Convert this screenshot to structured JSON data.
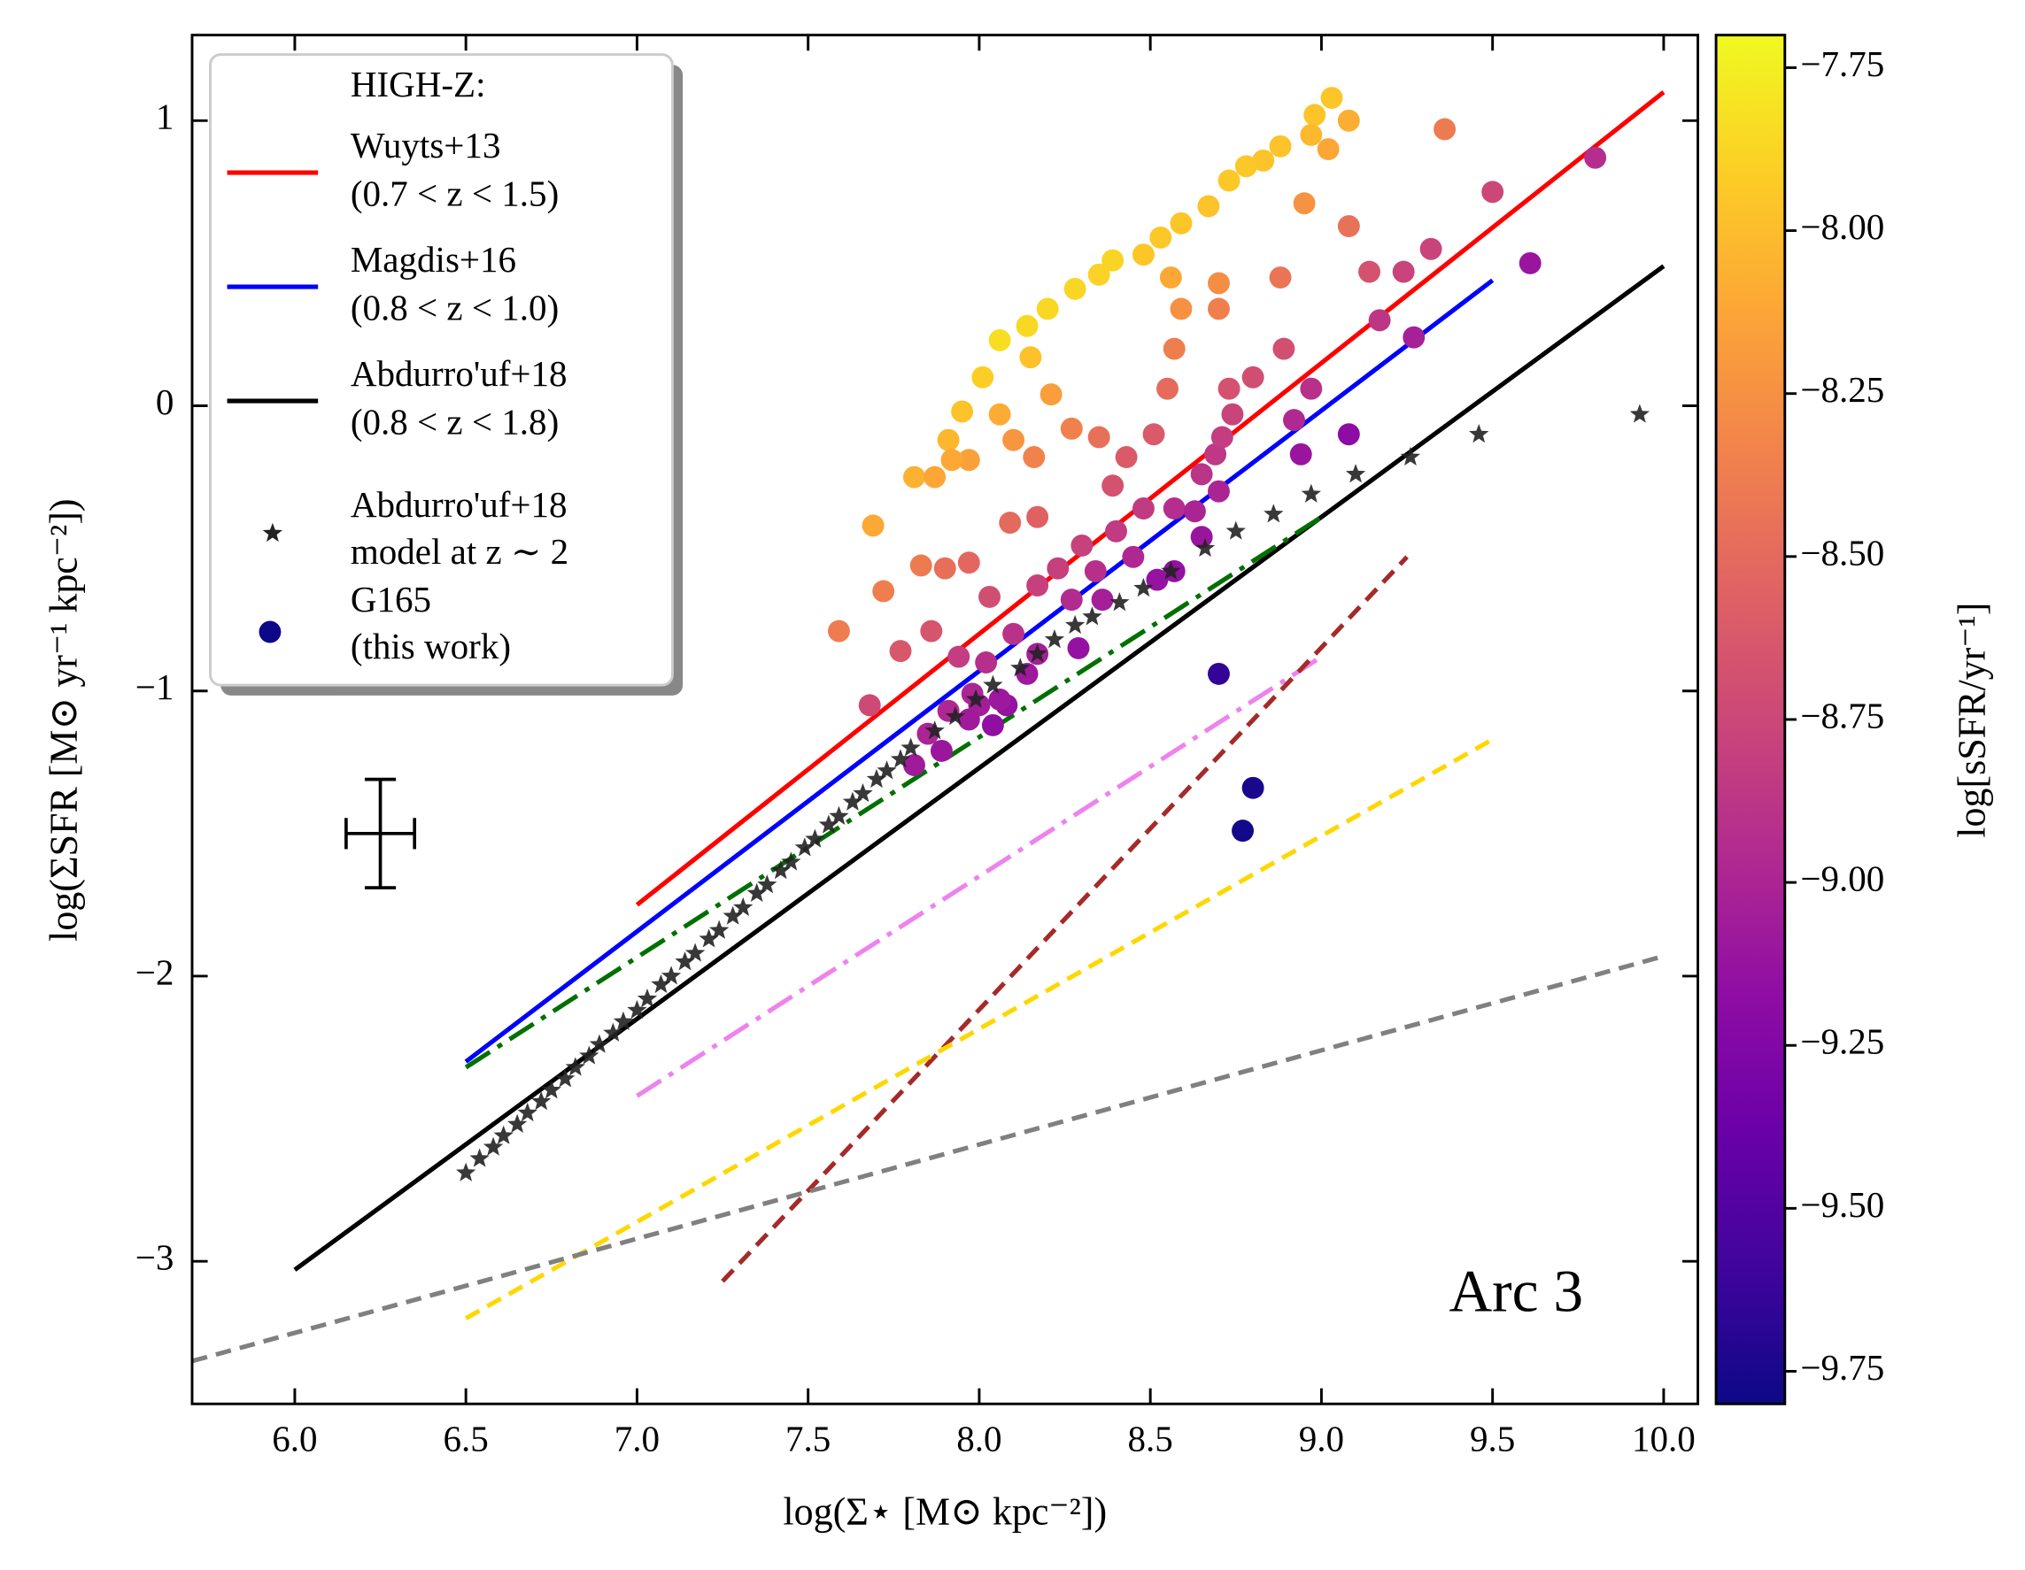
{
  "chart_data": {
    "type": "scatter",
    "xlabel": "log(Σ⋆ [M⊙ kpc⁻²])",
    "ylabel": "log(ΣSFR [M⊙ yr⁻¹ kpc⁻²])",
    "annotation": "Arc 3",
    "legend_title": "HIGH-Z:",
    "legend": "upper left",
    "xlim": [
      5.7,
      10.1
    ],
    "ylim": [
      -3.5,
      1.3
    ],
    "xticks": [
      {
        "value": 6,
        "label": "6.0"
      },
      {
        "value": 6.5,
        "label": "6.5"
      },
      {
        "value": 7,
        "label": "7.0"
      },
      {
        "value": 7.5,
        "label": "7.5"
      },
      {
        "value": 8,
        "label": "8.0"
      },
      {
        "value": 8.5,
        "label": "8.5"
      },
      {
        "value": 9,
        "label": "9.0"
      },
      {
        "value": 9.5,
        "label": "9.5"
      },
      {
        "value": 10,
        "label": "10.0"
      }
    ],
    "yticks": [
      {
        "value": -3,
        "label": "−3"
      },
      {
        "value": -2,
        "label": "−2"
      },
      {
        "value": -1,
        "label": "−1"
      },
      0,
      1
    ],
    "colormap": "plasma",
    "colorbar_label": "log[sSFR/yr⁻¹]",
    "clim": [
      -9.8,
      -7.7
    ],
    "cticks": [
      {
        "value": -7.75,
        "label": "−7.75"
      },
      {
        "value": -8,
        "label": "−8.00"
      },
      {
        "value": -8.25,
        "label": "−8.25"
      },
      {
        "value": -8.5,
        "label": "−8.50"
      },
      {
        "value": -8.75,
        "label": "−8.75"
      },
      {
        "value": -9,
        "label": "−9.00"
      },
      {
        "value": -9.25,
        "label": "−9.25"
      },
      {
        "value": -9.5,
        "label": "−9.50"
      },
      {
        "value": -9.75,
        "label": "−9.75"
      }
    ],
    "lines": [
      {
        "name": "Wuyts+13",
        "note": "(0.7 < z < 1.5)",
        "color": "#ff0000",
        "dash": "solid",
        "x": [
          7.0,
          10.0
        ],
        "values": [
          -1.75,
          1.1
        ]
      },
      {
        "name": "Magdis+16",
        "note": "(0.8 < z < 1.0)",
        "color": "#0000ff",
        "dash": "solid",
        "x": [
          6.5,
          9.5
        ],
        "values": [
          -2.3,
          0.44
        ]
      },
      {
        "name": "Abdurro'uf+18",
        "note": "(0.8 < z < 1.8)",
        "color": "#000000",
        "dash": "solid",
        "x": [
          6.0,
          10.0
        ],
        "values": [
          -3.03,
          0.49
        ]
      },
      {
        "color": "#007000",
        "dash": "dashdot",
        "x": [
          6.5,
          9.0
        ],
        "values": [
          -2.32,
          -0.39
        ]
      },
      {
        "color": "#ee82ee",
        "dash": "dashdot",
        "x": [
          7.0,
          9.0
        ],
        "values": [
          -2.42,
          -0.88
        ]
      },
      {
        "color": "#a52a2a",
        "dash": "dashed",
        "x": [
          7.25,
          9.25
        ],
        "values": [
          -3.07,
          -0.53
        ]
      },
      {
        "color": "#ffd700",
        "dash": "dashed",
        "x": [
          6.5,
          9.5
        ],
        "values": [
          -3.2,
          -1.17
        ]
      },
      {
        "color": "#808080",
        "dash": "dashed",
        "x": [
          5.7,
          10.0
        ],
        "values": [
          -3.35,
          -1.93
        ]
      }
    ],
    "model": {
      "name": "Abdurro'uf+18",
      "note": "model at z ∼ 2",
      "color": "#222222",
      "x": [
        6.5,
        6.54,
        6.58,
        6.61,
        6.65,
        6.68,
        6.72,
        6.75,
        6.79,
        6.82,
        6.86,
        6.89,
        6.93,
        6.96,
        7.0,
        7.03,
        7.07,
        7.1,
        7.14,
        7.17,
        7.21,
        7.24,
        7.28,
        7.31,
        7.35,
        7.38,
        7.42,
        7.45,
        7.49,
        7.52,
        7.56,
        7.59,
        7.63,
        7.66,
        7.7,
        7.73,
        7.77,
        7.8,
        7.87,
        7.93,
        7.99,
        8.04,
        8.12,
        8.17,
        8.22,
        8.28,
        8.33,
        8.41,
        8.48,
        8.56,
        8.66,
        8.75,
        8.86,
        8.97,
        9.1,
        9.26,
        9.46,
        9.93
      ],
      "values": [
        -2.69,
        -2.64,
        -2.6,
        -2.56,
        -2.52,
        -2.48,
        -2.44,
        -2.4,
        -2.36,
        -2.32,
        -2.28,
        -2.24,
        -2.2,
        -2.16,
        -2.12,
        -2.08,
        -2.03,
        -2.0,
        -1.95,
        -1.92,
        -1.87,
        -1.84,
        -1.79,
        -1.76,
        -1.71,
        -1.68,
        -1.63,
        -1.6,
        -1.55,
        -1.52,
        -1.47,
        -1.44,
        -1.39,
        -1.36,
        -1.31,
        -1.28,
        -1.24,
        -1.2,
        -1.14,
        -1.09,
        -1.03,
        -0.98,
        -0.92,
        -0.87,
        -0.82,
        -0.77,
        -0.74,
        -0.69,
        -0.64,
        -0.58,
        -0.5,
        -0.44,
        -0.38,
        -0.31,
        -0.24,
        -0.18,
        -0.1,
        -0.03
      ]
    },
    "points": {
      "name": "G165",
      "note": "(this work)",
      "color": "#0d0887",
      "x": [
        9.03,
        9.08,
        8.98,
        9.02,
        8.97,
        8.88,
        8.83,
        8.78,
        8.73,
        8.67,
        8.59,
        8.53,
        8.48,
        8.39,
        8.35,
        8.28,
        8.2,
        8.14,
        8.06,
        8.01,
        7.95,
        7.91,
        7.81,
        8.15,
        8.21,
        8.06,
        8.1,
        8.16,
        7.97,
        7.92,
        7.87,
        8.27,
        8.35,
        9.36,
        8.95,
        9.08,
        8.56,
        8.59,
        8.57,
        8.7,
        8.7,
        8.88,
        7.69,
        7.72,
        7.59,
        7.83,
        7.9,
        7.97,
        7.77,
        7.86,
        7.94,
        7.68,
        8.09,
        8.17,
        8.03,
        9.5,
        9.8,
        9.14,
        9.24,
        9.32,
        9.17,
        8.89,
        8.8,
        8.73,
        8.55,
        8.69,
        8.51,
        8.43,
        8.39,
        8.48,
        8.57,
        8.4,
        8.3,
        8.23,
        8.34,
        8.45,
        8.17,
        8.27,
        8.36,
        8.1,
        8.17,
        8.02,
        7.98,
        8.14,
        8.29,
        8.0,
        8.08,
        7.91,
        7.85,
        7.81,
        7.89,
        9.61,
        9.27,
        8.97,
        8.92,
        8.94,
        9.08,
        8.74,
        8.71,
        8.65,
        8.63,
        8.7,
        8.65,
        8.57,
        8.52,
        8.06,
        8.04,
        7.97,
        8.7,
        8.8,
        8.77
      ],
      "values": [
        1.08,
        1.0,
        1.02,
        0.9,
        0.95,
        0.91,
        0.86,
        0.84,
        0.79,
        0.7,
        0.64,
        0.59,
        0.53,
        0.51,
        0.46,
        0.41,
        0.34,
        0.28,
        0.23,
        0.1,
        -0.02,
        -0.12,
        -0.25,
        0.17,
        0.04,
        -0.03,
        -0.12,
        -0.18,
        -0.19,
        -0.19,
        -0.25,
        -0.08,
        -0.11,
        0.97,
        0.71,
        0.63,
        0.45,
        0.34,
        0.2,
        0.43,
        0.34,
        0.45,
        -0.42,
        -0.65,
        -0.79,
        -0.56,
        -0.57,
        -0.55,
        -0.86,
        -0.79,
        -0.88,
        -1.05,
        -0.41,
        -0.39,
        -0.67,
        0.75,
        0.87,
        0.47,
        0.47,
        0.55,
        0.3,
        0.2,
        0.1,
        0.06,
        0.06,
        -0.17,
        -0.1,
        -0.18,
        -0.28,
        -0.36,
        -0.36,
        -0.44,
        -0.49,
        -0.57,
        -0.58,
        -0.53,
        -0.63,
        -0.68,
        -0.68,
        -0.8,
        -0.87,
        -0.9,
        -1.01,
        -0.94,
        -0.85,
        -1.05,
        -1.05,
        -1.07,
        -1.15,
        -1.26,
        -1.21,
        0.5,
        0.24,
        0.06,
        -0.05,
        -0.17,
        -0.1,
        -0.03,
        -0.11,
        -0.24,
        -0.37,
        -0.3,
        -0.46,
        -0.58,
        -0.61,
        -1.03,
        -1.12,
        -1.1,
        -0.94,
        -1.34,
        -1.49
      ],
      "color_values": [
        -7.95,
        -8.08,
        -7.96,
        -8.12,
        -8.02,
        -7.97,
        -7.97,
        -7.94,
        -7.94,
        -7.97,
        -7.95,
        -7.94,
        -7.95,
        -7.88,
        -7.89,
        -7.87,
        -7.86,
        -7.86,
        -7.83,
        -7.91,
        -7.97,
        -8.03,
        -8.06,
        -7.98,
        -8.17,
        -8.09,
        -8.22,
        -8.34,
        -8.16,
        -8.11,
        -8.12,
        -8.35,
        -8.46,
        -8.39,
        -8.24,
        -8.45,
        -8.11,
        -8.25,
        -8.37,
        -8.27,
        -8.36,
        -8.43,
        -8.11,
        -8.37,
        -8.38,
        -8.39,
        -8.47,
        -8.52,
        -8.63,
        -8.65,
        -8.82,
        -8.73,
        -8.5,
        -8.56,
        -8.7,
        -8.75,
        -8.93,
        -8.67,
        -8.77,
        -8.77,
        -8.87,
        -8.69,
        -8.7,
        -8.67,
        -8.49,
        -8.86,
        -8.61,
        -8.61,
        -8.67,
        -8.84,
        -8.93,
        -8.84,
        -8.79,
        -8.8,
        -8.92,
        -8.98,
        -8.8,
        -8.95,
        -9.04,
        -8.9,
        -9.04,
        -8.92,
        -8.99,
        -9.08,
        -9.14,
        -9.05,
        -9.13,
        -8.98,
        -9.0,
        -9.07,
        -9.1,
        -9.11,
        -9.03,
        -8.91,
        -8.97,
        -9.11,
        -9.18,
        -8.77,
        -8.82,
        -8.89,
        -9.0,
        -9.0,
        -9.11,
        -9.15,
        -9.13,
        -9.09,
        -9.16,
        -9.07,
        -9.65,
        -9.75,
        -9.78
      ]
    },
    "error_bar": {
      "x": 6.25,
      "y": -1.5,
      "xerr": 0.1,
      "yerr": 0.19
    }
  }
}
